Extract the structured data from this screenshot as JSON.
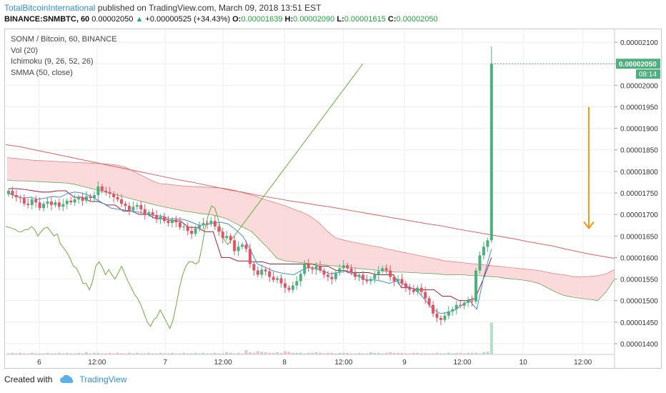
{
  "header": {
    "author": "TotalBitcoinInternational",
    "published": "published on TradingView.com, March 09, 2018 13:51 EST",
    "symbol": "BINANCE:SNMBTC, 60",
    "last": "0.00002050",
    "change": "+0.00000525 (+34.43%)",
    "o_label": "O:",
    "o": "0.00001639",
    "h_label": "H:",
    "h": "0.00002090",
    "l_label": "L:",
    "l": "0.00001615",
    "c_label": "C:",
    "c": "0.00002050"
  },
  "legend": {
    "title": "SONM / Bitcoin, 60, BINANCE",
    "vol": "Vol (20)",
    "ichimoku": "Ichimoku (9, 26, 52, 26)",
    "smma": "SMMA (50, close)"
  },
  "footer": {
    "created": "Created with",
    "brand": "TradingView"
  },
  "price_tag": {
    "value": "0.00002050",
    "countdown": "08:14"
  },
  "colors": {
    "up": "#4caf7d",
    "down": "#e05563",
    "grid": "#eeeeee",
    "smma": "#e06060",
    "tenkan": "#3d8fdd",
    "kijun": "#a02034",
    "chikou": "#6aaa40",
    "cloud": "#f9d3d3",
    "cloud_edge": "#66aa55",
    "arrow": "#f39c12",
    "tag": "#4caf7d"
  },
  "chart_data": {
    "type": "candlestick",
    "y_ticks": [
      "0.00002100",
      "0.00002050",
      "0.00002000",
      "0.00001950",
      "0.00001900",
      "0.00001850",
      "0.00001800",
      "0.00001750",
      "0.00001700",
      "0.00001650",
      "0.00001600",
      "0.00001550",
      "0.00001500",
      "0.00001450",
      "0.00001400"
    ],
    "x_ticks": [
      {
        "label": "6",
        "pos": 0.055
      },
      {
        "label": "12:00",
        "pos": 0.15
      },
      {
        "label": "7",
        "pos": 0.262
      },
      {
        "label": "12:00",
        "pos": 0.357
      },
      {
        "label": "8",
        "pos": 0.458
      },
      {
        "label": "12:00",
        "pos": 0.555
      },
      {
        "label": "9",
        "pos": 0.655
      },
      {
        "label": "12:00",
        "pos": 0.75
      },
      {
        "label": "10",
        "pos": 0.85
      },
      {
        "label": "12:00",
        "pos": 0.948
      }
    ],
    "ylim": [
      1.375e-05,
      2.13e-05
    ],
    "candles_close": [
      1755,
      1745,
      1740,
      1738,
      1725,
      1722,
      1735,
      1728,
      1715,
      1725,
      1730,
      1722,
      1728,
      1718,
      1724,
      1732,
      1728,
      1735,
      1740,
      1732,
      1742,
      1738,
      1745,
      1765,
      1755,
      1752,
      1748,
      1740,
      1735,
      1725,
      1720,
      1710,
      1718,
      1722,
      1712,
      1700,
      1705,
      1698,
      1690,
      1695,
      1685,
      1680,
      1688,
      1682,
      1670,
      1672,
      1662,
      1655,
      1668,
      1675,
      1680,
      1678,
      1685,
      1672,
      1660,
      1645,
      1650,
      1640,
      1615,
      1625,
      1630,
      1620,
      1585,
      1570,
      1560,
      1572,
      1568,
      1555,
      1548,
      1552,
      1540,
      1530,
      1525,
      1535,
      1545,
      1562,
      1585,
      1575,
      1572,
      1580,
      1570,
      1560,
      1555,
      1550,
      1565,
      1575,
      1582,
      1575,
      1565,
      1555,
      1560,
      1548,
      1545,
      1550,
      1560,
      1568,
      1575,
      1570,
      1555,
      1545,
      1550,
      1540,
      1530,
      1525,
      1520,
      1530,
      1520,
      1505,
      1490,
      1470,
      1460,
      1455,
      1465,
      1475,
      1480,
      1490,
      1488,
      1495,
      1500,
      1498,
      1570,
      1605,
      1625,
      1640,
      2050
    ],
    "smma": [
      1862,
      1858,
      1852,
      1846,
      1840,
      1834,
      1828,
      1822,
      1816,
      1810,
      1804,
      1798,
      1792,
      1786,
      1780,
      1775,
      1769,
      1763,
      1757,
      1752,
      1746,
      1741,
      1736,
      1731,
      1727,
      1722,
      1718,
      1713,
      1708,
      1703,
      1698,
      1693,
      1688,
      1683,
      1678,
      1674,
      1668,
      1663,
      1658,
      1653,
      1648,
      1643,
      1637,
      1632,
      1627,
      1620,
      1614,
      1608,
      1603,
      1598
    ],
    "tenkan": [
      1750,
      1742,
      1738,
      1740,
      1735,
      1738,
      1742,
      1740,
      1748,
      1752,
      1750,
      1744,
      1735,
      1725,
      1715,
      1712,
      1710,
      1708,
      1705,
      1700,
      1698,
      1696,
      1690,
      1690,
      1688,
      1682,
      1675,
      1676,
      1680,
      1682,
      1678,
      1665,
      1650,
      1620,
      1585,
      1578,
      1570,
      1565,
      1562,
      1560,
      1570,
      1578,
      1575,
      1568,
      1562,
      1565,
      1568,
      1562,
      1555,
      1548,
      1548,
      1545,
      1540,
      1545,
      1538,
      1530,
      1520,
      1500,
      1480,
      1470,
      1472,
      1478,
      1490,
      1500,
      1480,
      1560,
      1620
    ],
    "kijun": [
      1760,
      1760,
      1758,
      1755,
      1752,
      1752,
      1755,
      1755,
      1740,
      1740,
      1730,
      1730,
      1722,
      1722,
      1708,
      1708,
      1700,
      1700,
      1690,
      1690,
      1685,
      1685,
      1670,
      1670,
      1660,
      1660,
      1600,
      1600,
      1592,
      1592,
      1590,
      1590,
      1585,
      1585,
      1585,
      1585,
      1585,
      1585,
      1580,
      1580,
      1570,
      1570,
      1565,
      1565,
      1565,
      1560,
      1560,
      1560,
      1530,
      1530,
      1525,
      1525,
      1525,
      1510,
      1510,
      1500,
      1500,
      1505,
      1550,
      1600
    ],
    "chikou": [
      1672,
      1670,
      1668,
      1665,
      1660,
      1660,
      1665,
      1665,
      1672,
      1665,
      1650,
      1660,
      1668,
      1670,
      1660,
      1650,
      1655,
      1632,
      1622,
      1612,
      1598,
      1580,
      1575,
      1560,
      1540,
      1540,
      1525,
      1545,
      1580,
      1590,
      1578,
      1560,
      1572,
      1560,
      1550,
      1565,
      1580,
      1562,
      1545,
      1530,
      1515,
      1505,
      1490,
      1470,
      1450,
      1440,
      1455,
      1462,
      1478,
      1465,
      1450,
      1435,
      1455,
      1490,
      1530,
      1560,
      1580,
      1590,
      1590,
      1585,
      1590,
      1625,
      1670,
      1700,
      1720,
      1715,
      1690,
      1660,
      1640,
      1630,
      1640,
      1650,
      1660,
      1670,
      1680,
      1690,
      1700,
      1710,
      1720,
      1730,
      1740,
      1750,
      1760,
      1770,
      1780,
      1790,
      1800,
      1810,
      1820,
      1830,
      1840,
      1850,
      1860,
      1870,
      1880,
      1890,
      1900,
      1910,
      1920,
      1930,
      1940,
      1950,
      1960,
      1970,
      1980,
      1990,
      2000,
      2010,
      2020,
      2030,
      2040,
      2050
    ],
    "cloud_a": [
      1832,
      1830,
      1828,
      1826,
      1825,
      1824,
      1823,
      1822,
      1821,
      1820,
      1819,
      1818,
      1817,
      1815,
      1810,
      1800,
      1790,
      1780,
      1772,
      1770,
      1768,
      1766,
      1765,
      1764,
      1763,
      1762,
      1760,
      1756,
      1750,
      1745,
      1738,
      1732,
      1726,
      1720,
      1712,
      1705,
      1695,
      1680,
      1660,
      1645,
      1640,
      1636,
      1632,
      1628,
      1625,
      1620,
      1616,
      1612,
      1608,
      1604,
      1600,
      1596,
      1592,
      1590,
      1588,
      1586,
      1584,
      1582,
      1580,
      1578,
      1576,
      1574,
      1572,
      1570,
      1566,
      1562,
      1560,
      1556,
      1555,
      1556,
      1558,
      1562,
      1572
    ],
    "cloud_b": [
      1780,
      1778,
      1778,
      1777,
      1776,
      1775,
      1774,
      1773,
      1770,
      1765,
      1760,
      1755,
      1750,
      1745,
      1740,
      1735,
      1730,
      1725,
      1720,
      1716,
      1712,
      1708,
      1705,
      1702,
      1700,
      1696,
      1690,
      1680,
      1670,
      1660,
      1640,
      1620,
      1598,
      1592,
      1590,
      1588,
      1585,
      1584,
      1582,
      1580,
      1578,
      1576,
      1574,
      1572,
      1570,
      1568,
      1566,
      1566,
      1565,
      1564,
      1563,
      1562,
      1560,
      1560,
      1560,
      1558,
      1558,
      1556,
      1555,
      1552,
      1550,
      1548,
      1545,
      1540,
      1530,
      1520,
      1512,
      1508,
      1505,
      1503,
      1500,
      1520,
      1550
    ],
    "volumes": [
      2,
      3,
      2,
      3,
      2,
      2,
      3,
      2,
      2,
      2,
      3,
      2,
      2,
      3,
      2,
      3,
      2,
      2,
      3,
      2,
      4,
      2,
      3,
      3,
      2,
      2,
      3,
      2,
      3,
      2,
      2,
      3,
      2,
      3,
      2,
      2,
      3,
      2,
      2,
      3,
      2,
      2,
      3,
      2,
      2,
      3,
      2,
      2,
      3,
      2,
      3,
      2,
      2,
      3,
      2,
      2,
      4,
      3,
      2,
      3,
      2,
      8,
      4,
      3,
      6,
      5,
      4,
      3,
      3,
      4,
      3,
      6,
      5,
      3,
      3,
      3,
      2,
      3,
      3,
      4,
      3,
      2,
      3,
      3,
      2,
      3,
      3,
      3,
      2,
      2,
      3,
      2,
      2,
      4,
      3,
      3,
      2,
      3,
      4,
      3,
      3,
      3,
      2,
      2,
      3,
      3,
      2,
      2,
      2,
      2,
      3,
      2,
      2,
      3,
      2,
      3,
      3,
      2,
      3,
      3,
      3,
      2,
      4,
      5,
      60
    ]
  }
}
